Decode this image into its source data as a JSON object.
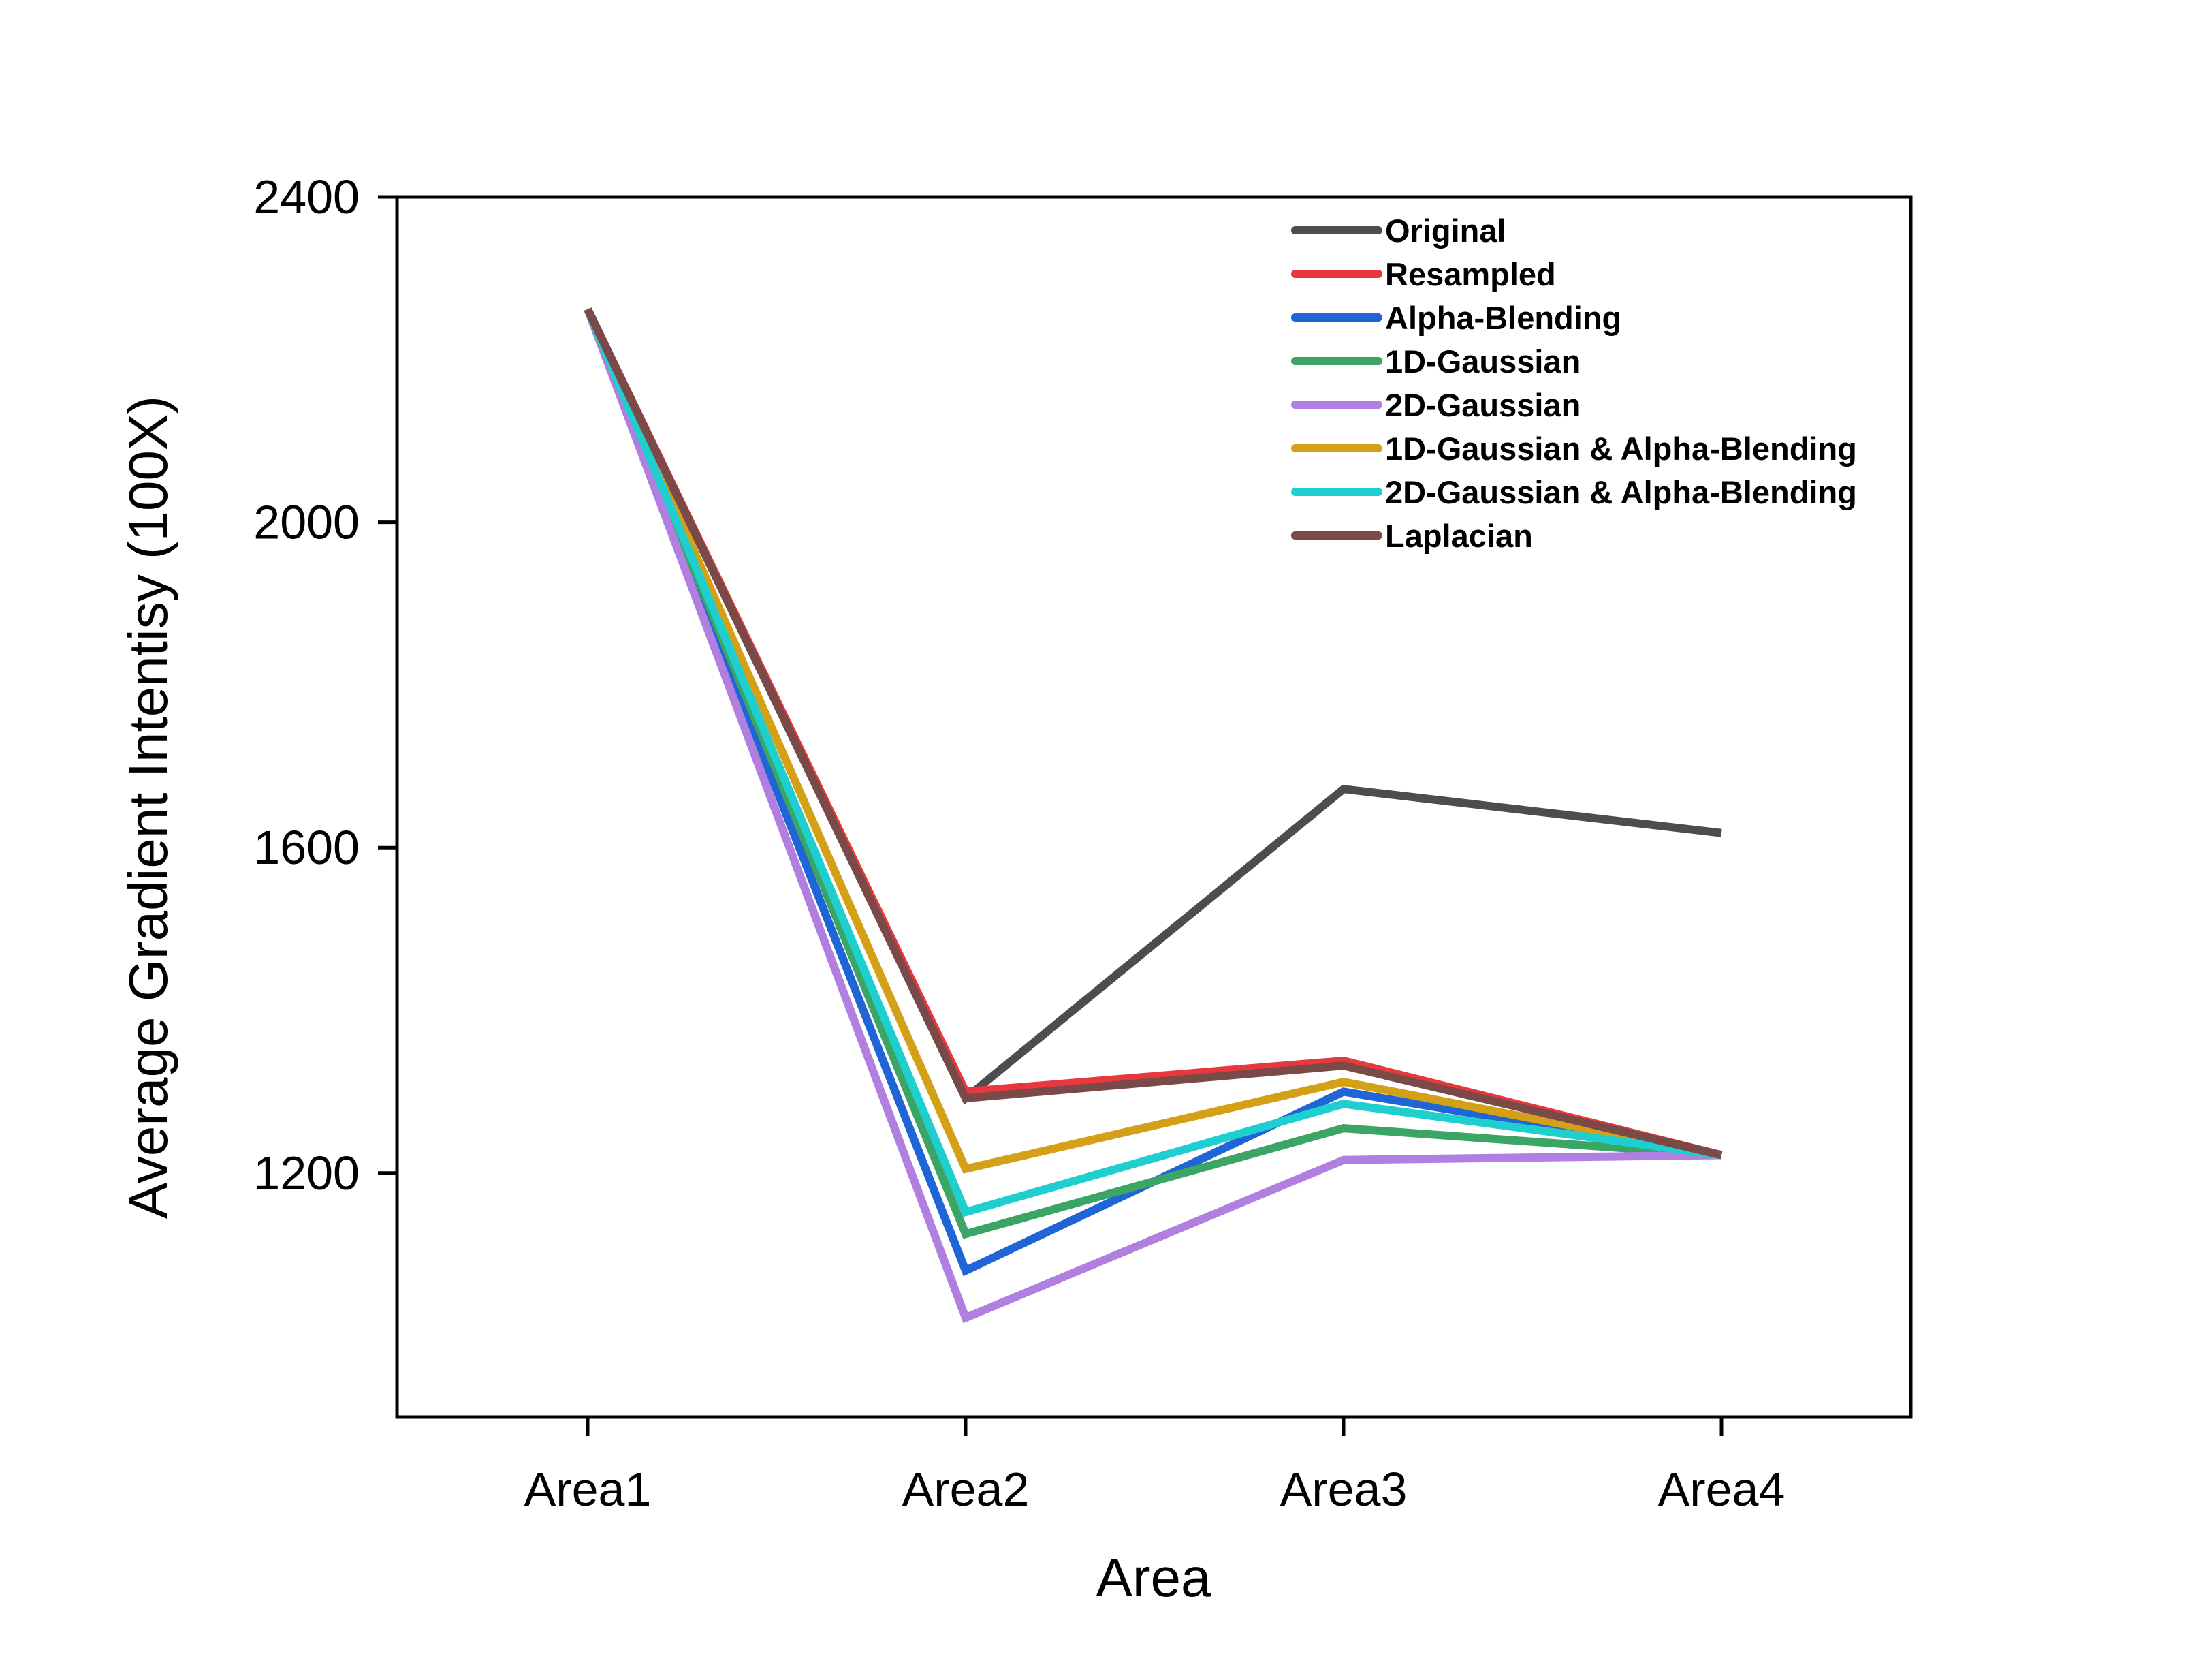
{
  "chart_data": {
    "type": "line",
    "title": "",
    "xlabel": "Area",
    "ylabel": "Average Gradient Intentisy (100X)",
    "categories": [
      "Area1",
      "Area2",
      "Area3",
      "Area4"
    ],
    "ylim": [
      900,
      2400
    ],
    "yticks": [
      1200,
      1600,
      2000,
      2400
    ],
    "ytick_labels": [
      "1200",
      "1600",
      "2000",
      "2400"
    ],
    "grid": false,
    "legend_position": "top-right",
    "series": [
      {
        "name": "Original",
        "color": "#4d4d4d",
        "values": [
          2262,
          1292,
          1672,
          1618
        ]
      },
      {
        "name": "Resampled",
        "color": "#e8383d",
        "values": [
          2262,
          1300,
          1338,
          1222
        ]
      },
      {
        "name": "Alpha-Blending",
        "color": "#1f65d6",
        "values": [
          2262,
          1080,
          1300,
          1222
        ]
      },
      {
        "name": "1D-Gaussian",
        "color": "#3aa564",
        "values": [
          2262,
          1125,
          1255,
          1222
        ]
      },
      {
        "name": "2D-Gaussian",
        "color": "#b07fe0",
        "values": [
          2262,
          1022,
          1216,
          1222
        ]
      },
      {
        "name": "1D-Gaussian & Alpha-Blending",
        "color": "#d4a017",
        "values": [
          2262,
          1205,
          1312,
          1222
        ]
      },
      {
        "name": "2D-Gaussian & Alpha-Blending",
        "color": "#1fcfcf",
        "values": [
          2262,
          1152,
          1285,
          1222
        ]
      },
      {
        "name": "Laplacian",
        "color": "#7a4a48",
        "values": [
          2262,
          1292,
          1332,
          1222
        ]
      }
    ]
  }
}
